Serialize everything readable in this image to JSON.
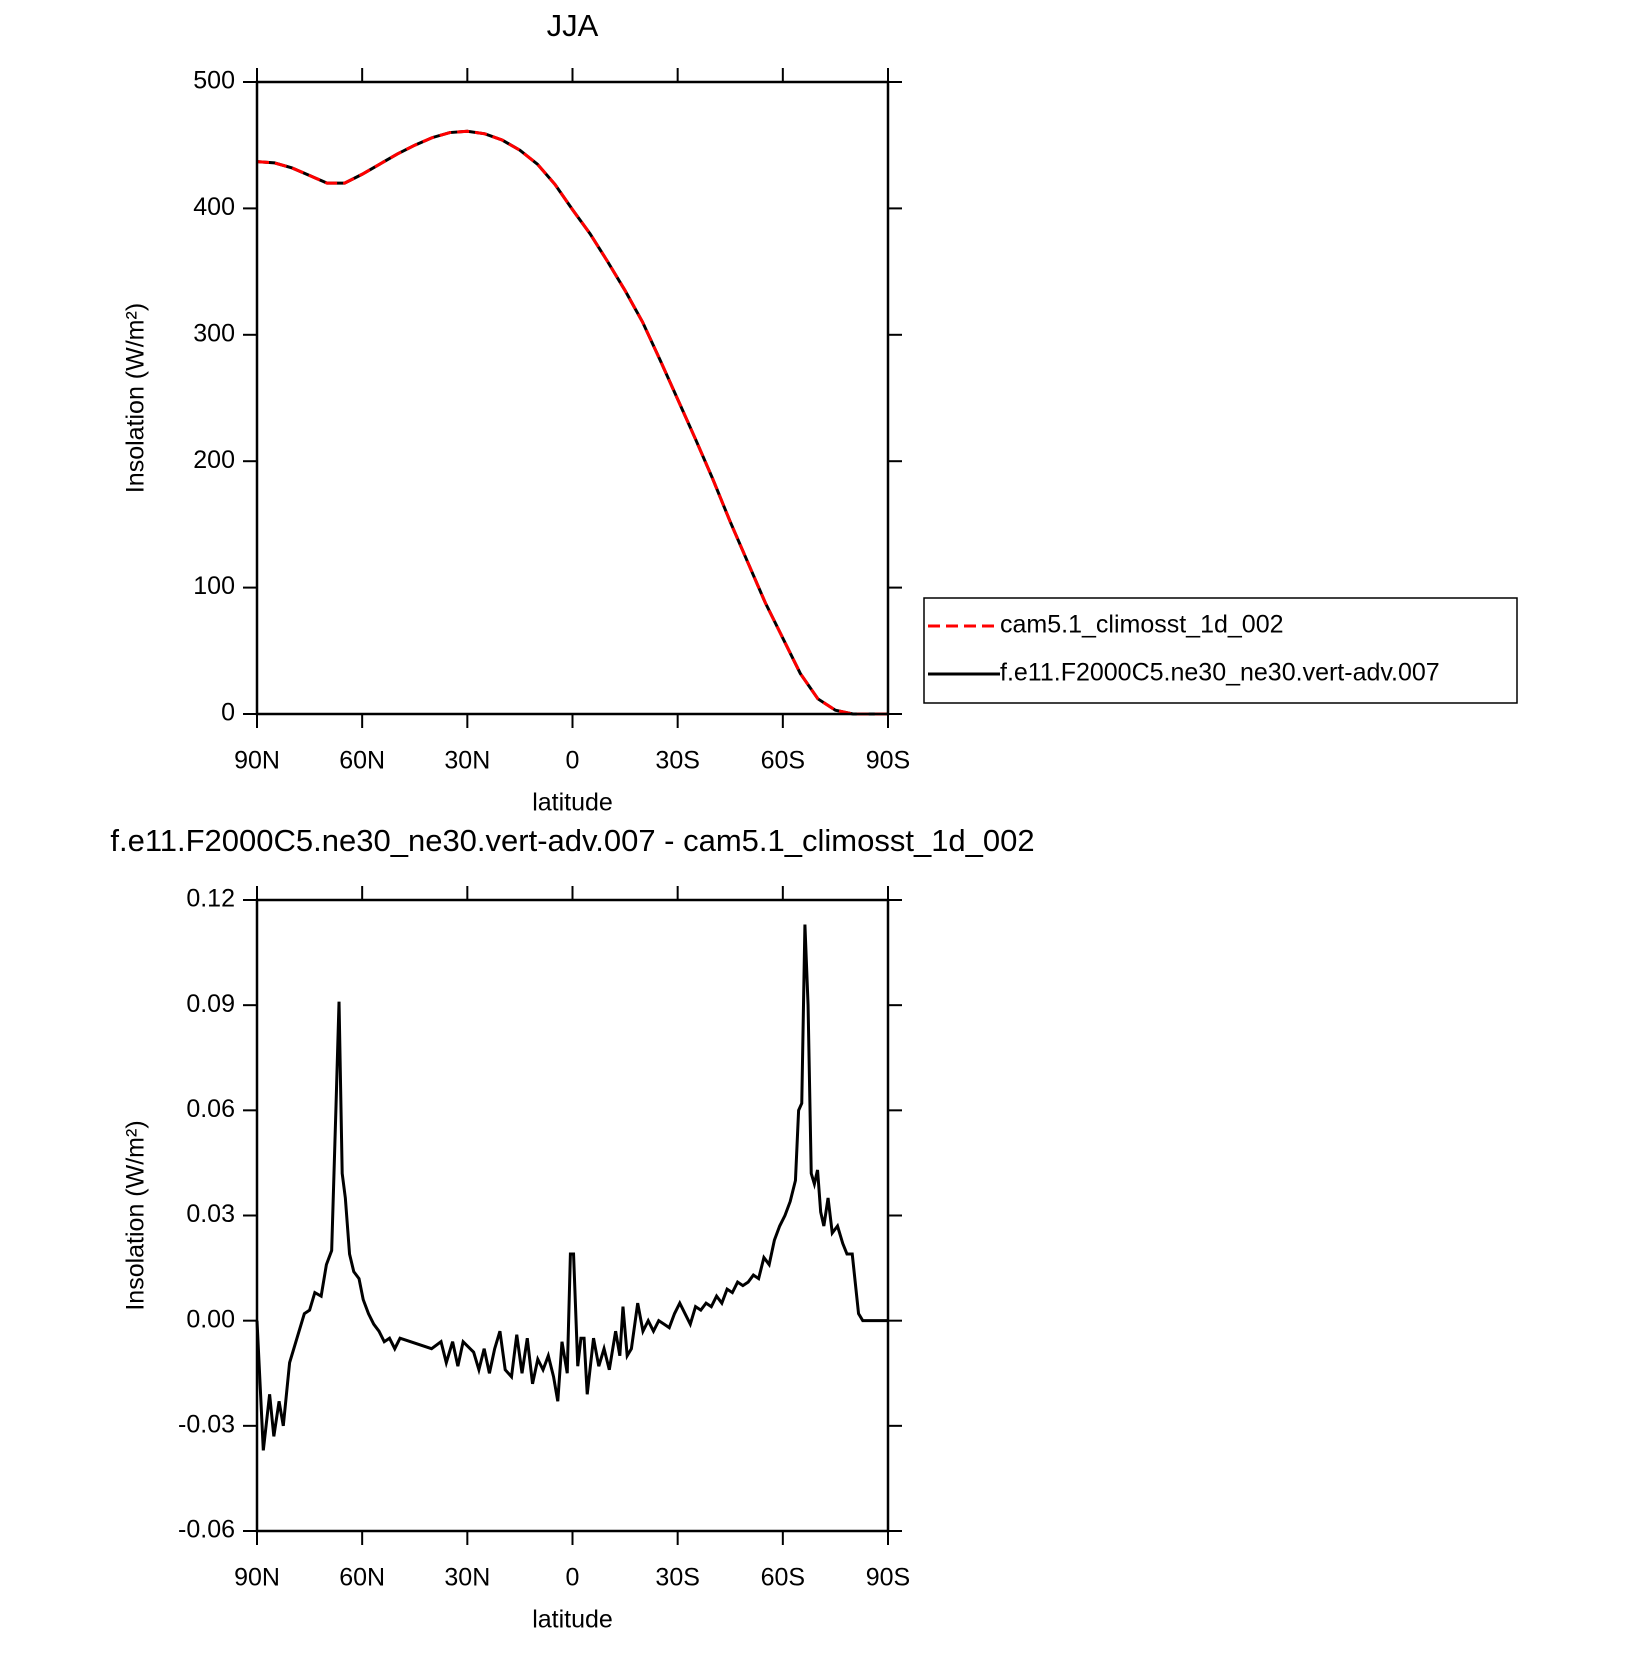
{
  "chart_data": [
    {
      "type": "line",
      "title": "JJA",
      "xlabel": "latitude",
      "ylabel": "Insolation (W/m²)",
      "x": [
        90,
        85,
        80,
        75,
        70,
        65,
        60,
        55,
        50,
        45,
        40,
        35,
        30,
        25,
        20,
        15,
        10,
        5,
        0,
        -5,
        -10,
        -15,
        -20,
        -25,
        -30,
        -35,
        -40,
        -45,
        -50,
        -55,
        -60,
        -65,
        -70,
        -75,
        -80,
        -85,
        -90
      ],
      "series": [
        {
          "name": "f.e11.F2000C5.ne30_ne30.vert-adv.007",
          "color": "#000000",
          "dash": false,
          "values": [
            437,
            436,
            432,
            426,
            420,
            420,
            427,
            435,
            443,
            450,
            456,
            460,
            461,
            459,
            454,
            446,
            435,
            419,
            399,
            380,
            358,
            335,
            310,
            280,
            249,
            218,
            186,
            152,
            120,
            88,
            60,
            32,
            12,
            3,
            0,
            0,
            0
          ]
        },
        {
          "name": "cam5.1_climosst_1d_002",
          "color": "#ff0000",
          "dash": true,
          "values": [
            437,
            436,
            432,
            426,
            420,
            420,
            427,
            435,
            443,
            450,
            456,
            460,
            461,
            459,
            454,
            446,
            435,
            419,
            399,
            380,
            358,
            335,
            310,
            280,
            249,
            218,
            186,
            152,
            120,
            88,
            60,
            32,
            12,
            3,
            0,
            0,
            0
          ]
        }
      ],
      "legend_order": [
        1,
        0
      ],
      "xlim": [
        90,
        -90
      ],
      "xticks": [
        {
          "value": 90,
          "label": "90N"
        },
        {
          "value": 60,
          "label": "60N"
        },
        {
          "value": 30,
          "label": "30N"
        },
        0,
        {
          "value": -30,
          "label": "30S"
        },
        {
          "value": -60,
          "label": "60S"
        },
        {
          "value": -90,
          "label": "90S"
        }
      ],
      "ylim": [
        0,
        500
      ],
      "yticks": [
        0,
        100,
        200,
        300,
        400,
        500
      ]
    },
    {
      "type": "line",
      "title": "f.e11.F2000C5.ne30_ne30.vert-adv.007 - cam5.1_climosst_1d_002",
      "xlabel": "latitude",
      "ylabel": "Insolation (W/m²)",
      "color": "#000000",
      "x": [
        90,
        88.2,
        86.4,
        85.2,
        83.7,
        82.5,
        80.7,
        78.9,
        76.5,
        75,
        73.5,
        71.7,
        70.2,
        68.7,
        67.5,
        66.6,
        65.7,
        64.8,
        63.6,
        62.4,
        60.9,
        59.7,
        58.2,
        56.7,
        55.2,
        53.7,
        52.2,
        50.7,
        49.2,
        46.2,
        43.2,
        40.2,
        37.5,
        36,
        34.2,
        32.7,
        31.2,
        28.2,
        26.7,
        25.2,
        23.7,
        22.2,
        20.7,
        19.2,
        17.4,
        15.9,
        14.4,
        12.9,
        11.4,
        9.9,
        8.4,
        6.9,
        5.4,
        4.2,
        3,
        1.5,
        0.6,
        -0.3,
        -1.5,
        -2.4,
        -3.3,
        -4.2,
        -6,
        -7.5,
        -9,
        -10.5,
        -12.3,
        -13.5,
        -14.4,
        -15.6,
        -16.8,
        -18.6,
        -20.1,
        -21.6,
        -23.1,
        -24.6,
        -26.1,
        -27.6,
        -29.1,
        -30.6,
        -32.1,
        -33.6,
        -35.1,
        -36.6,
        -38.1,
        -39.6,
        -41.1,
        -42.6,
        -44.1,
        -45.6,
        -47.1,
        -48.6,
        -50.1,
        -51.6,
        -53.1,
        -54.6,
        -56.1,
        -57.6,
        -59.1,
        -60.6,
        -62.1,
        -63.6,
        -64.5,
        -65.4,
        -66.3,
        -67.2,
        -68.1,
        -69,
        -69.9,
        -70.8,
        -71.7,
        -72.9,
        -74.1,
        -75.6,
        -77.1,
        -78.3,
        -79.8,
        -81.6,
        -82.8,
        -86.4,
        -90
      ],
      "values": [
        0,
        -0.037,
        -0.021,
        -0.033,
        -0.023,
        -0.03,
        -0.012,
        -0.006,
        0.002,
        0.003,
        0.008,
        0.007,
        0.016,
        0.02,
        0.06,
        0.091,
        0.042,
        0.035,
        0.019,
        0.014,
        0.012,
        0.006,
        0.002,
        -0.001,
        -0.003,
        -0.006,
        -0.005,
        -0.008,
        -0.005,
        -0.006,
        -0.007,
        -0.008,
        -0.006,
        -0.012,
        -0.006,
        -0.013,
        -0.006,
        -0.009,
        -0.014,
        -0.008,
        -0.015,
        -0.008,
        -0.003,
        -0.014,
        -0.016,
        -0.004,
        -0.015,
        -0.005,
        -0.018,
        -0.011,
        -0.014,
        -0.01,
        -0.016,
        -0.023,
        -0.006,
        -0.015,
        0.019,
        0.019,
        -0.013,
        -0.005,
        -0.005,
        -0.021,
        -0.005,
        -0.013,
        -0.008,
        -0.014,
        -0.003,
        -0.01,
        0.004,
        -0.01,
        -0.008,
        0.005,
        -0.003,
        0,
        -0.003,
        0,
        -0.001,
        -0.002,
        0.002,
        0.005,
        0.002,
        -0.001,
        0.004,
        0.003,
        0.005,
        0.004,
        0.007,
        0.005,
        0.009,
        0.008,
        0.011,
        0.01,
        0.011,
        0.013,
        0.012,
        0.018,
        0.016,
        0.023,
        0.027,
        0.03,
        0.034,
        0.04,
        0.06,
        0.062,
        0.113,
        0.09,
        0.042,
        0.039,
        0.043,
        0.031,
        0.027,
        0.035,
        0.025,
        0.027,
        0.022,
        0.019,
        0.019,
        0.002,
        0,
        0,
        0
      ],
      "xlim": [
        90,
        -90
      ],
      "xticks": [
        {
          "value": 90,
          "label": "90N"
        },
        {
          "value": 60,
          "label": "60N"
        },
        {
          "value": 30,
          "label": "30N"
        },
        0,
        {
          "value": -30,
          "label": "30S"
        },
        {
          "value": -60,
          "label": "60S"
        },
        {
          "value": -90,
          "label": "90S"
        }
      ],
      "ylim": [
        -0.06,
        0.12
      ],
      "yticks": [
        0.12,
        0.09,
        0.06,
        0.03,
        {
          "value": 0,
          "label": "0.00"
        },
        -0.03,
        -0.06
      ]
    }
  ]
}
